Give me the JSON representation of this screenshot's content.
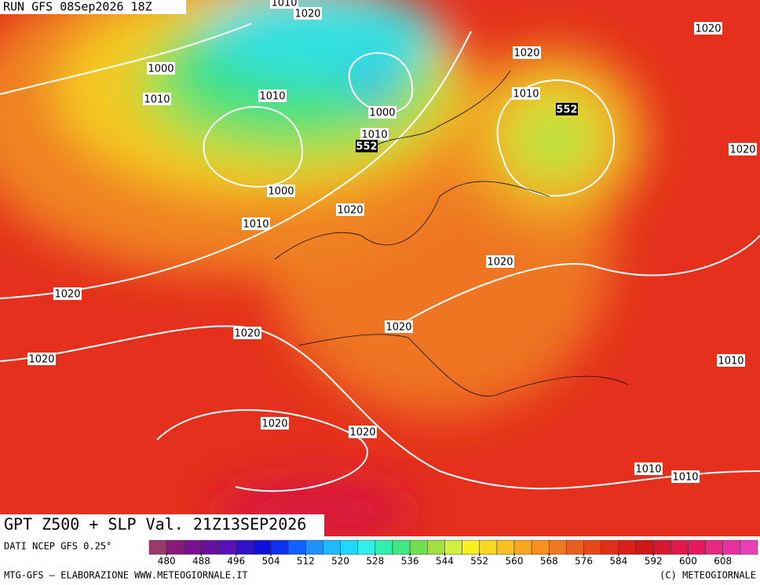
{
  "header": {
    "run": "RUN GFS 08Sep2026 18Z"
  },
  "map": {
    "contour_labels": [
      "1010",
      "1020",
      "1020",
      "1020",
      "1000",
      "1010",
      "1010",
      "1000",
      "1010",
      "552",
      "1010",
      "552",
      "1000",
      "1020",
      "1010",
      "1020",
      "1020",
      "1020",
      "1020",
      "1020",
      "1020",
      "1010",
      "1020",
      "1020",
      "1010",
      "1010"
    ]
  },
  "footer": {
    "title": "GPT Z500 + SLP Val. 21Z13SEP2026",
    "source": "DATI NCEP GFS 0.25°",
    "credit": "MTG-GFS – ELABORAZIONE WWW.METEOGIORNALE.IT",
    "copyright": "(C) METEOGIORNALE"
  },
  "colorbar": {
    "ticks": [
      480,
      488,
      496,
      504,
      512,
      520,
      528,
      536,
      544,
      552,
      560,
      568,
      576,
      584,
      592,
      600,
      608
    ],
    "colors": [
      "#9a3a6a",
      "#8a1a7a",
      "#7a1090",
      "#6a10a0",
      "#5a10b8",
      "#3010c8",
      "#1010d8",
      "#1030f0",
      "#1060ff",
      "#2090ff",
      "#20b8ff",
      "#20d8ff",
      "#30f0e8",
      "#30f0b0",
      "#40e880",
      "#70e050",
      "#a0e040",
      "#d0f040",
      "#f8f020",
      "#f8d820",
      "#f8c020",
      "#f8a820",
      "#f89020",
      "#f07820",
      "#e86020",
      "#e84818",
      "#e03018",
      "#d82018",
      "#d01818",
      "#d81830",
      "#e01848",
      "#e81860",
      "#e82880",
      "#e830a0",
      "#e840b8"
    ]
  }
}
